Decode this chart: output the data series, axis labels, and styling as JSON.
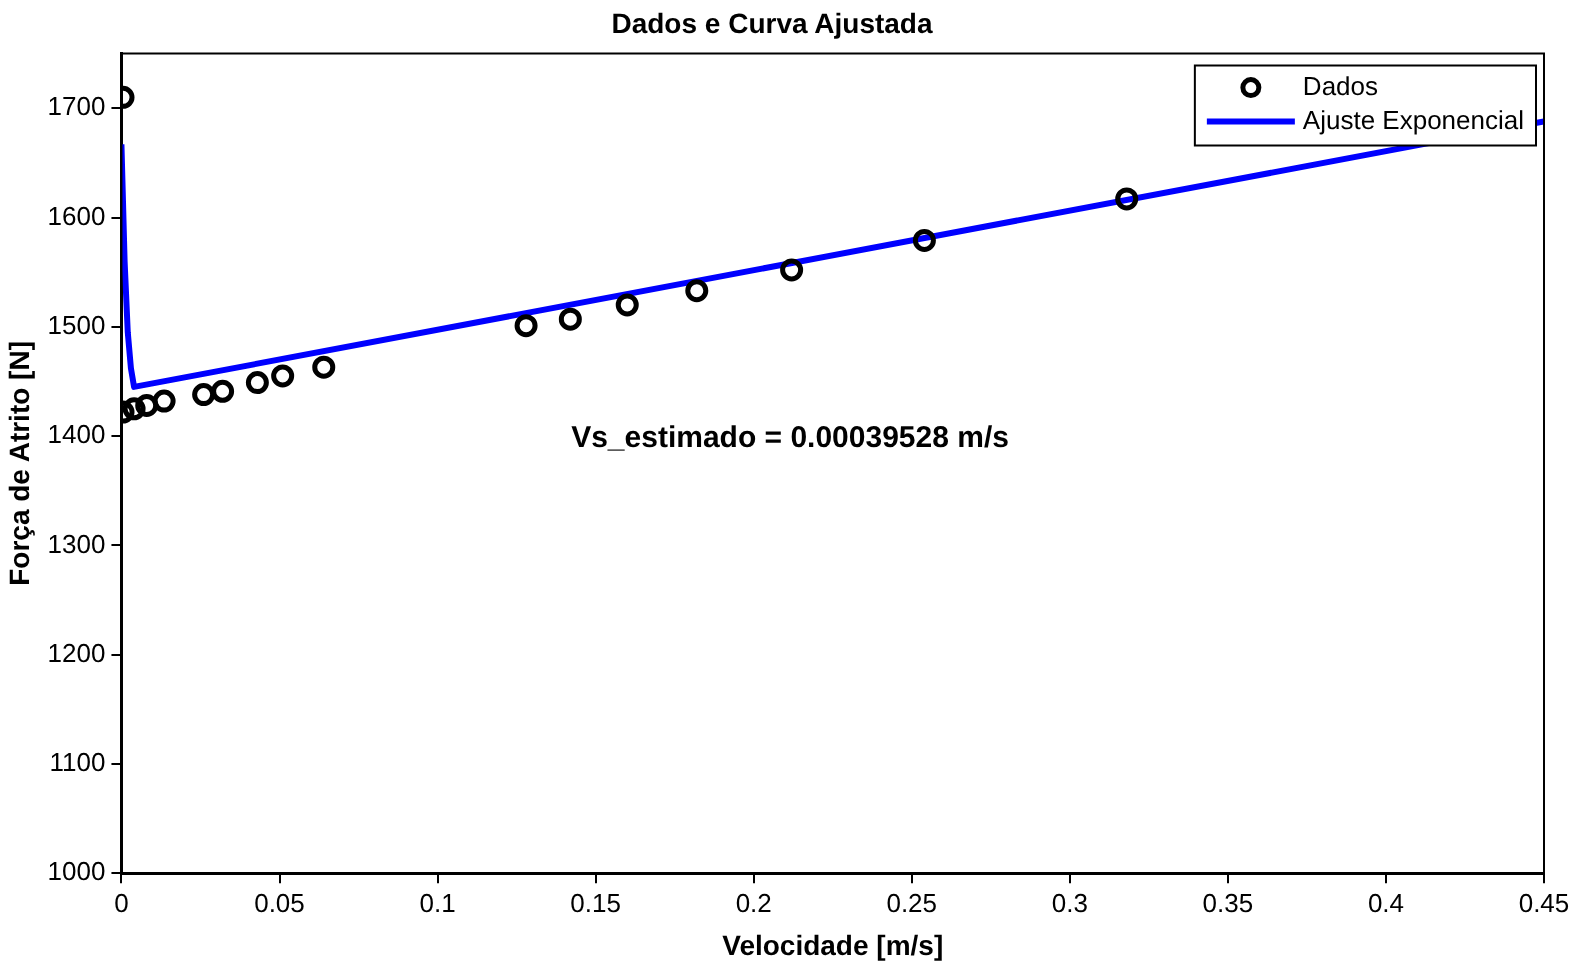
{
  "chart_data": {
    "type": "scatter",
    "title": "Dados e Curva Ajustada",
    "xlabel": "Velocidade [m/s]",
    "ylabel": "Força de Atrito [N]",
    "xlim": [
      0,
      0.45
    ],
    "xticks": [
      0,
      0.05,
      0.1,
      0.15,
      0.2,
      0.25,
      0.3,
      0.35,
      0.4,
      0.45
    ],
    "ylim": [
      1000,
      1750
    ],
    "yticks": [
      1000,
      1100,
      1200,
      1300,
      1400,
      1500,
      1600,
      1700
    ],
    "grid": false,
    "legend": "top right",
    "annotations": [
      "Vs_estimado = 0.00039528 m/s"
    ],
    "series": [
      {
        "name": "Dados",
        "marker": "circle",
        "color": "#000000",
        "x": [
          0.0005,
          0.0005,
          0.004,
          0.008,
          0.0135,
          0.026,
          0.032,
          0.043,
          0.051,
          0.064,
          0.128,
          0.142,
          0.16,
          0.182,
          0.212,
          0.254,
          0.318
        ],
        "values": [
          1710,
          1422,
          1425,
          1428,
          1432,
          1438,
          1441,
          1449,
          1455,
          1463,
          1501,
          1507,
          1520,
          1533,
          1552,
          1579,
          1617
        ]
      },
      {
        "name": "Ajuste Exponencial",
        "type": "line",
        "marker": "none",
        "line_style": "solid",
        "color": "#0000ff",
        "x": [
          0,
          0.001,
          0.002,
          0.003,
          0.004,
          0.45
        ],
        "values": [
          1667,
          1560,
          1495,
          1462,
          1445,
          1688
        ]
      }
    ]
  }
}
